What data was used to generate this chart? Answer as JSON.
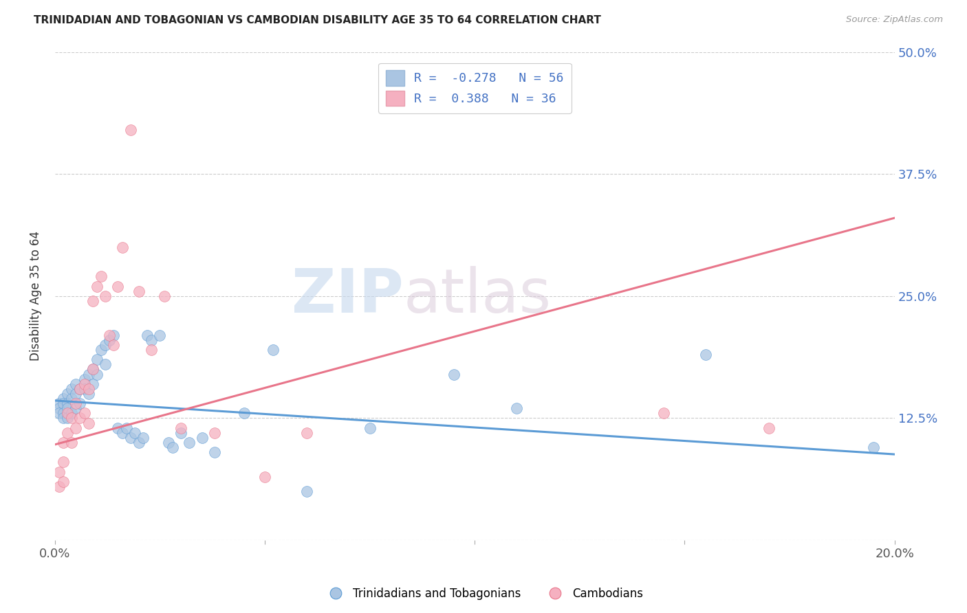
{
  "title": "TRINIDADIAN AND TOBAGONIAN VS CAMBODIAN DISABILITY AGE 35 TO 64 CORRELATION CHART",
  "source": "Source: ZipAtlas.com",
  "ylabel": "Disability Age 35 to 64",
  "xlim": [
    0.0,
    0.2
  ],
  "ylim": [
    0.0,
    0.5
  ],
  "xticks": [
    0.0,
    0.05,
    0.1,
    0.15,
    0.2
  ],
  "xtick_labels": [
    "0.0%",
    "",
    "",
    "",
    "20.0%"
  ],
  "ytick_labels_right": [
    "50.0%",
    "37.5%",
    "25.0%",
    "12.5%",
    ""
  ],
  "yticks": [
    0.5,
    0.375,
    0.25,
    0.125,
    0.0
  ],
  "watermark_zip": "ZIP",
  "watermark_atlas": "atlas",
  "blue_r": -0.278,
  "blue_n": 56,
  "pink_r": 0.388,
  "pink_n": 36,
  "blue_color": "#aac5e2",
  "pink_color": "#f5b0c0",
  "blue_edge_color": "#5b9bd5",
  "pink_edge_color": "#e8758a",
  "blue_line_color": "#5b9bd5",
  "pink_line_color": "#e8758a",
  "blue_label": "Trinidadians and Tobagonians",
  "pink_label": "Cambodians",
  "blue_scatter_x": [
    0.001,
    0.001,
    0.001,
    0.002,
    0.002,
    0.002,
    0.002,
    0.003,
    0.003,
    0.003,
    0.003,
    0.004,
    0.004,
    0.004,
    0.005,
    0.005,
    0.005,
    0.006,
    0.006,
    0.007,
    0.007,
    0.008,
    0.008,
    0.009,
    0.009,
    0.01,
    0.01,
    0.011,
    0.012,
    0.012,
    0.013,
    0.014,
    0.015,
    0.016,
    0.017,
    0.018,
    0.019,
    0.02,
    0.021,
    0.022,
    0.023,
    0.025,
    0.027,
    0.028,
    0.03,
    0.032,
    0.035,
    0.038,
    0.045,
    0.052,
    0.06,
    0.075,
    0.095,
    0.11,
    0.155,
    0.195
  ],
  "blue_scatter_y": [
    0.14,
    0.135,
    0.13,
    0.145,
    0.14,
    0.13,
    0.125,
    0.15,
    0.14,
    0.135,
    0.125,
    0.155,
    0.145,
    0.13,
    0.16,
    0.15,
    0.135,
    0.155,
    0.14,
    0.165,
    0.155,
    0.17,
    0.15,
    0.175,
    0.16,
    0.185,
    0.17,
    0.195,
    0.2,
    0.18,
    0.205,
    0.21,
    0.115,
    0.11,
    0.115,
    0.105,
    0.11,
    0.1,
    0.105,
    0.21,
    0.205,
    0.21,
    0.1,
    0.095,
    0.11,
    0.1,
    0.105,
    0.09,
    0.13,
    0.195,
    0.05,
    0.115,
    0.17,
    0.135,
    0.19,
    0.095
  ],
  "pink_scatter_x": [
    0.001,
    0.001,
    0.002,
    0.002,
    0.002,
    0.003,
    0.003,
    0.004,
    0.004,
    0.005,
    0.005,
    0.006,
    0.006,
    0.007,
    0.007,
    0.008,
    0.008,
    0.009,
    0.009,
    0.01,
    0.011,
    0.012,
    0.013,
    0.014,
    0.015,
    0.016,
    0.018,
    0.02,
    0.023,
    0.026,
    0.03,
    0.038,
    0.05,
    0.06,
    0.145,
    0.17
  ],
  "pink_scatter_y": [
    0.07,
    0.055,
    0.1,
    0.08,
    0.06,
    0.13,
    0.11,
    0.125,
    0.1,
    0.14,
    0.115,
    0.155,
    0.125,
    0.16,
    0.13,
    0.155,
    0.12,
    0.245,
    0.175,
    0.26,
    0.27,
    0.25,
    0.21,
    0.2,
    0.26,
    0.3,
    0.42,
    0.255,
    0.195,
    0.25,
    0.115,
    0.11,
    0.065,
    0.11,
    0.13,
    0.115
  ],
  "blue_line_x0": 0.0,
  "blue_line_y0": 0.143,
  "blue_line_x1": 0.2,
  "blue_line_y1": 0.088,
  "pink_line_x0": 0.0,
  "pink_line_y0": 0.098,
  "pink_line_x1": 0.2,
  "pink_line_y1": 0.33
}
